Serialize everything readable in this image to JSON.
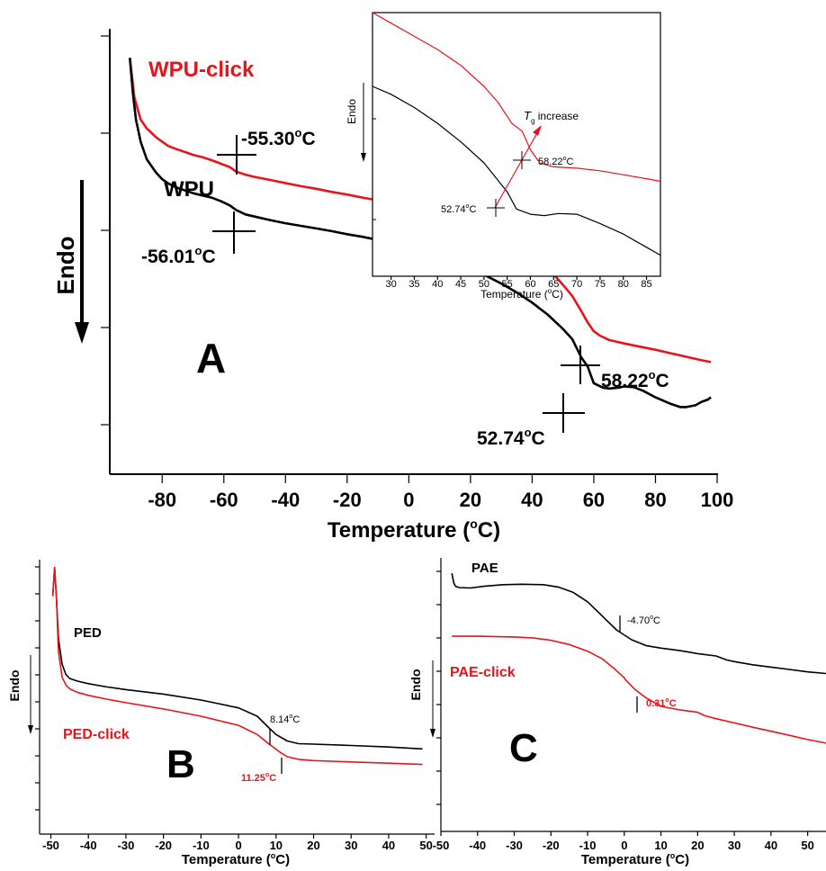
{
  "colors": {
    "black_series": "#000000",
    "red_series": "#e8141c",
    "axis": "#000000"
  },
  "chart_data": [
    {
      "panel": "A",
      "type": "line",
      "panel_label": "A",
      "xlabel": "Temperature (°C)",
      "xlabel_main": "Temperature (",
      "xlabel_sup": "o",
      "xlabel_tail": "C)",
      "ylabel": "Endo",
      "xlim": [
        -97,
        100
      ],
      "ylim": [
        0,
        10
      ],
      "x_ticks": [
        "-80",
        "-60",
        "-40",
        "-20",
        "0",
        "20",
        "40",
        "60",
        "80",
        "100"
      ],
      "x_tick_values": [
        -80,
        -60,
        -40,
        -20,
        0,
        20,
        40,
        60,
        80,
        100
      ],
      "y_ticks_labeled": false,
      "series": [
        {
          "name": "WPU-click",
          "color": "#e8141c",
          "x": [
            -90.5,
            -89,
            -87,
            -85,
            -82,
            -80,
            -78,
            -75,
            -72,
            -70,
            -67,
            -64,
            -61,
            -58,
            -56,
            -53,
            -50,
            -45,
            -40,
            -35,
            -30,
            -25,
            -20,
            -15,
            -10,
            -5,
            -3,
            -2,
            -1.5,
            -1,
            0,
            5,
            10,
            15,
            20,
            25,
            30,
            35,
            40,
            45,
            50,
            53,
            56,
            58,
            60,
            62,
            65,
            70,
            75,
            80,
            85,
            90,
            95,
            98
          ],
          "y": [
            9.3,
            8.4,
            7.9,
            7.7,
            7.5,
            7.4,
            7.3,
            7.22,
            7.15,
            7.1,
            7.05,
            6.98,
            6.9,
            6.82,
            6.72,
            6.65,
            6.6,
            6.53,
            6.46,
            6.39,
            6.33,
            6.26,
            6.2,
            6.13,
            6.07,
            6.0,
            5.98,
            5.95,
            5.87,
            5.94,
            5.92,
            5.85,
            5.76,
            5.66,
            5.55,
            5.42,
            5.28,
            5.1,
            4.85,
            4.55,
            4.15,
            3.9,
            3.55,
            3.3,
            3.1,
            3.0,
            2.9,
            2.82,
            2.75,
            2.68,
            2.6,
            2.52,
            2.44,
            2.4
          ]
        },
        {
          "name": "WPU",
          "color": "#000000",
          "x": [
            -90.5,
            -89.5,
            -88.5,
            -87,
            -85,
            -82,
            -80,
            -78,
            -75,
            -72,
            -70,
            -67,
            -64,
            -61,
            -58,
            -56,
            -53,
            -50,
            -45,
            -40,
            -35,
            -30,
            -25,
            -20,
            -15,
            -10,
            -5,
            -3,
            -2,
            -1.5,
            -1,
            0,
            5,
            10,
            15,
            20,
            25,
            30,
            35,
            40,
            45,
            50,
            53,
            56,
            58,
            60,
            63,
            65,
            68,
            70,
            73,
            76,
            80,
            85,
            88,
            90,
            93,
            95,
            97,
            98
          ],
          "y": [
            9.3,
            8.5,
            7.9,
            7.4,
            7.0,
            6.7,
            6.55,
            6.45,
            6.35,
            6.28,
            6.23,
            6.18,
            6.13,
            6.05,
            5.95,
            5.85,
            5.75,
            5.7,
            5.62,
            5.55,
            5.49,
            5.43,
            5.37,
            5.3,
            5.24,
            5.17,
            5.1,
            5.07,
            5.02,
            4.93,
            5.0,
            4.98,
            4.88,
            4.77,
            4.65,
            4.52,
            4.36,
            4.18,
            3.98,
            3.75,
            3.48,
            3.15,
            2.92,
            2.5,
            2.3,
            1.92,
            1.82,
            1.8,
            1.82,
            1.85,
            1.83,
            1.75,
            1.6,
            1.45,
            1.38,
            1.38,
            1.42,
            1.5,
            1.55,
            1.6
          ]
        }
      ],
      "annotations": [
        {
          "text": "WPU-click",
          "color": "#e8141c"
        },
        {
          "text": "WPU",
          "color": "#000000"
        },
        {
          "text_main": "-55.30",
          "sup": "o",
          "tail": "C",
          "x": -55.3
        },
        {
          "text_main": "-56.01",
          "sup": "o",
          "tail": "C",
          "x": -56.01
        },
        {
          "text_main": "58.22",
          "sup": "o",
          "tail": "C",
          "x": 58.22
        },
        {
          "text_main": "52.74",
          "sup": "o",
          "tail": "C",
          "x": 52.74
        }
      ]
    },
    {
      "panel": "A-inset",
      "type": "line",
      "xlabel_main": "Temperature (",
      "xlabel_sup": "o",
      "xlabel_tail": "C)",
      "ylabel": "Endo",
      "xlim": [
        26,
        88
      ],
      "ylim": [
        0,
        10
      ],
      "x_ticks": [
        "30",
        "35",
        "40",
        "45",
        "50",
        "55",
        "60",
        "65",
        "70",
        "75",
        "80",
        "85"
      ],
      "x_tick_values": [
        30,
        35,
        40,
        45,
        50,
        55,
        60,
        65,
        70,
        75,
        80,
        85
      ],
      "series": [
        {
          "name": "WPU-click",
          "color": "#e8141c",
          "x": [
            26,
            30,
            35,
            40,
            45,
            50,
            53,
            56,
            58.22,
            60,
            62,
            65,
            70,
            75,
            80,
            85,
            88
          ],
          "y": [
            10.0,
            9.6,
            9.1,
            8.6,
            8.0,
            7.2,
            6.6,
            5.8,
            5.5,
            4.8,
            4.3,
            4.15,
            4.1,
            4.0,
            3.85,
            3.7,
            3.6
          ]
        },
        {
          "name": "WPU",
          "color": "#000000",
          "x": [
            26,
            30,
            35,
            40,
            45,
            50,
            52.74,
            55,
            57,
            60,
            63,
            66,
            70,
            75,
            80,
            85,
            88
          ],
          "y": [
            7.2,
            6.9,
            6.4,
            5.8,
            5.1,
            4.3,
            3.7,
            3.2,
            2.55,
            2.35,
            2.3,
            2.38,
            2.35,
            2.0,
            1.6,
            1.1,
            0.8
          ]
        }
      ],
      "annotations": [
        {
          "text_italic": "T",
          "sub": "g",
          "tail": " increase"
        },
        {
          "text_main": "58.22",
          "sup": "o",
          "tail": "C",
          "x": 58.22
        },
        {
          "text_main": "52.74",
          "sup": "o",
          "tail": "C",
          "x": 52.74
        }
      ]
    },
    {
      "panel": "B",
      "type": "line",
      "panel_label": "B",
      "xlabel_main": "Temperature (",
      "xlabel_sup": "o",
      "xlabel_tail": "C)",
      "ylabel": "Endo",
      "xlim": [
        -53,
        52
      ],
      "ylim": [
        0,
        10
      ],
      "x_ticks": [
        "-50",
        "-40",
        "-30",
        "-20",
        "-10",
        "0",
        "10",
        "20",
        "30",
        "40",
        "50"
      ],
      "x_tick_values": [
        -50,
        -40,
        -30,
        -20,
        -10,
        0,
        10,
        20,
        30,
        40,
        50
      ],
      "series": [
        {
          "name": "PED",
          "color": "#000000",
          "x": [
            -49.5,
            -49,
            -48.5,
            -48,
            -47,
            -46,
            -45,
            -43,
            -40,
            -35,
            -30,
            -20,
            -10,
            0,
            5,
            8.14,
            10,
            13,
            16,
            20,
            30,
            40,
            49
          ],
          "y": [
            8.6,
            9.7,
            8.5,
            7.0,
            6.0,
            5.6,
            5.45,
            5.35,
            5.25,
            5.12,
            5.02,
            4.85,
            4.62,
            4.32,
            4.0,
            3.55,
            3.3,
            3.05,
            2.95,
            2.93,
            2.88,
            2.82,
            2.75
          ]
        },
        {
          "name": "PED-click",
          "color": "#e8141c",
          "x": [
            -49.5,
            -49,
            -48.5,
            -48,
            -47,
            -46,
            -45,
            -43,
            -40,
            -35,
            -30,
            -20,
            -10,
            0,
            5,
            8,
            11.25,
            13,
            16,
            20,
            30,
            40,
            49
          ],
          "y": [
            8.6,
            9.7,
            8.5,
            6.5,
            5.5,
            5.2,
            5.05,
            4.92,
            4.8,
            4.65,
            4.52,
            4.28,
            4.0,
            3.65,
            3.3,
            2.95,
            2.6,
            2.45,
            2.35,
            2.3,
            2.25,
            2.2,
            2.15
          ]
        }
      ],
      "annotations": [
        {
          "text": "PED",
          "color": "#000000"
        },
        {
          "text": "PED-click",
          "color": "#e8141c"
        },
        {
          "text_main": "8.14",
          "sup": "o",
          "tail": "C",
          "x": 8.14
        },
        {
          "text_main": "11.25",
          "sup": "o",
          "tail": "C",
          "x": 11.25
        }
      ]
    },
    {
      "panel": "C",
      "type": "line",
      "panel_label": "C",
      "xlabel_main": "Temperature (",
      "xlabel_sup": "o",
      "xlabel_tail": "C)",
      "ylabel": "Endo",
      "xlim": [
        -50,
        55
      ],
      "ylim": [
        0,
        10
      ],
      "x_ticks": [
        "-50",
        "-40",
        "-30",
        "-20",
        "-10",
        "0",
        "10",
        "20",
        "30",
        "40",
        "50"
      ],
      "x_tick_values": [
        -50,
        -40,
        -30,
        -20,
        -10,
        0,
        10,
        20,
        30,
        40,
        50
      ],
      "series": [
        {
          "name": "PAE",
          "color": "#000000",
          "x": [
            -47,
            -46.5,
            -46,
            -45,
            -42,
            -38,
            -33,
            -28,
            -22,
            -18,
            -14,
            -10,
            -7,
            -4.7,
            -2,
            2,
            6,
            10,
            15,
            20,
            25,
            28,
            30,
            35,
            40,
            45,
            50,
            55
          ],
          "y": [
            9.2,
            8.8,
            8.65,
            8.6,
            8.58,
            8.66,
            8.72,
            8.74,
            8.72,
            8.62,
            8.4,
            8.0,
            7.55,
            7.2,
            6.8,
            6.4,
            6.15,
            6.05,
            5.95,
            5.82,
            5.72,
            5.55,
            5.48,
            5.35,
            5.25,
            5.15,
            5.05,
            4.98
          ]
        },
        {
          "name": "PAE-click",
          "color": "#e8141c",
          "x": [
            -47,
            -40,
            -30,
            -25,
            -20,
            -15,
            -10,
            -6,
            -3,
            0,
            0.31,
            3,
            6,
            10,
            15,
            20,
            22,
            25,
            30,
            35,
            40,
            45,
            50,
            55
          ],
          "y": [
            6.55,
            6.55,
            6.52,
            6.48,
            6.38,
            6.2,
            5.92,
            5.6,
            5.22,
            4.8,
            4.72,
            4.3,
            3.95,
            3.6,
            3.45,
            3.35,
            3.2,
            3.08,
            2.9,
            2.72,
            2.55,
            2.38,
            2.2,
            2.05
          ]
        }
      ],
      "annotations": [
        {
          "text": "PAE",
          "color": "#000000"
        },
        {
          "text": "PAE-click",
          "color": "#e8141c"
        },
        {
          "text_main": "-4.70",
          "sup": "o",
          "tail": "C",
          "x": -4.7
        },
        {
          "text_main": "0.31",
          "sup": "o",
          "tail": "C",
          "x": 0.31
        }
      ]
    }
  ]
}
